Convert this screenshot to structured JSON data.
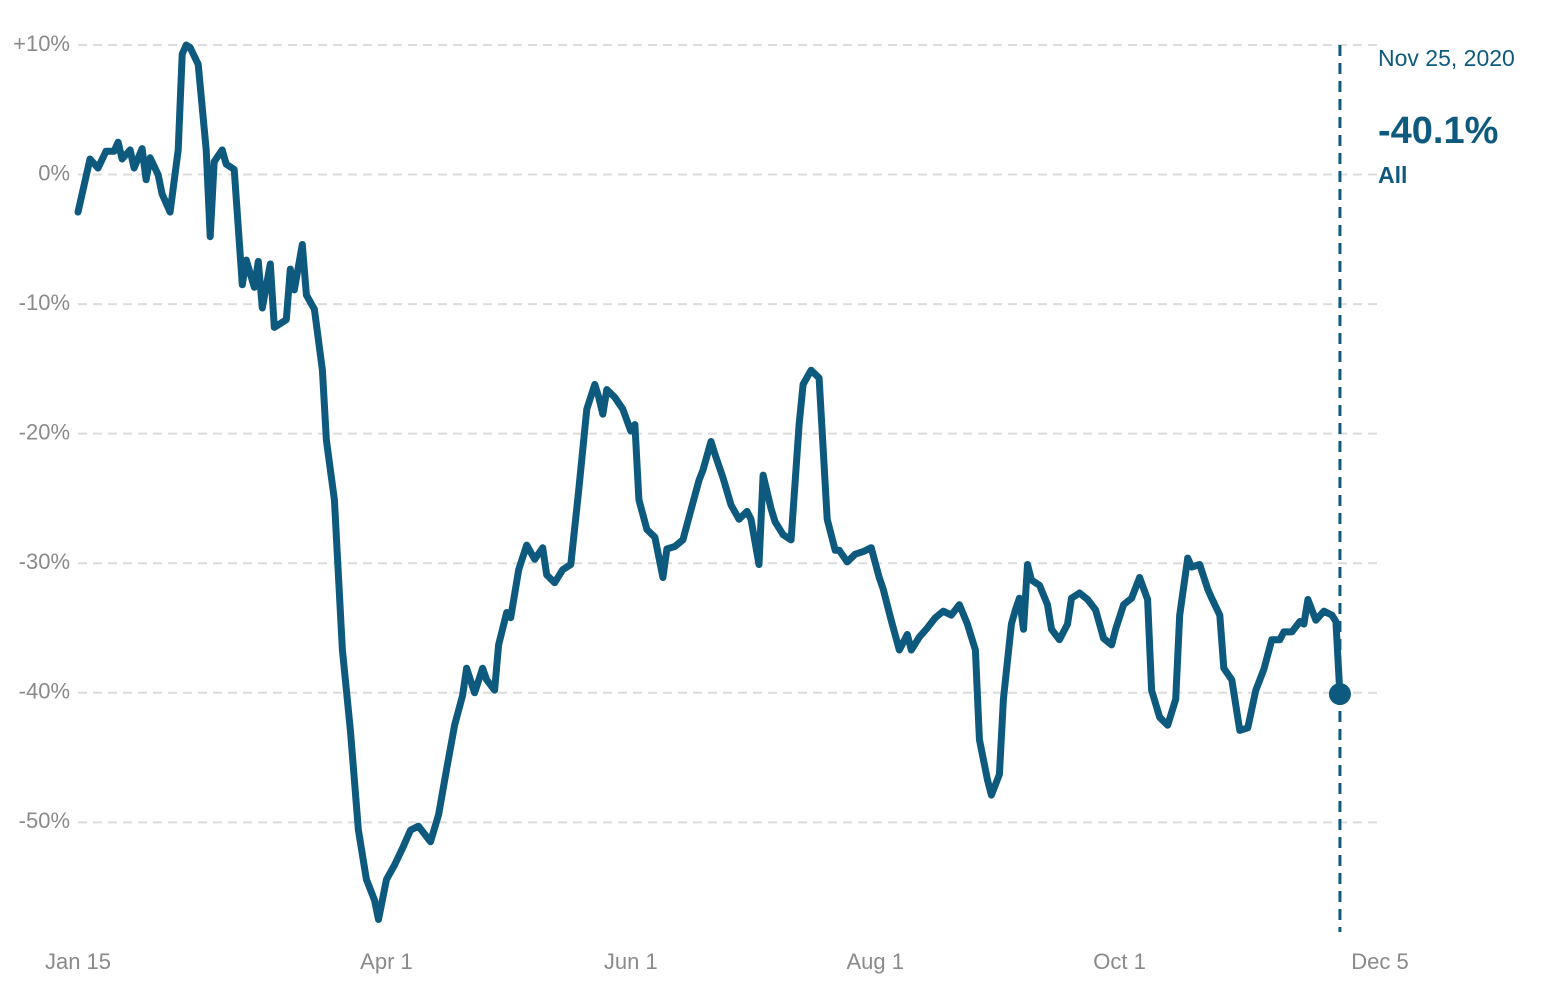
{
  "chart_data": {
    "type": "line",
    "x": [
      "2020-01-15",
      "2020-01-18",
      "2020-01-20",
      "2020-01-22",
      "2020-01-24",
      "2020-01-25",
      "2020-01-26",
      "2020-01-28",
      "2020-01-29",
      "2020-01-31",
      "2020-02-01",
      "2020-02-02",
      "2020-02-04",
      "2020-02-05",
      "2020-02-07",
      "2020-02-09",
      "2020-02-10",
      "2020-02-11",
      "2020-02-12",
      "2020-02-14",
      "2020-02-16",
      "2020-02-17",
      "2020-02-18",
      "2020-02-20",
      "2020-02-21",
      "2020-02-23",
      "2020-02-25",
      "2020-02-26",
      "2020-02-28",
      "2020-02-29",
      "2020-03-01",
      "2020-03-03",
      "2020-03-04",
      "2020-03-07",
      "2020-03-08",
      "2020-03-09",
      "2020-03-11",
      "2020-03-12",
      "2020-03-14",
      "2020-03-16",
      "2020-03-17",
      "2020-03-19",
      "2020-03-21",
      "2020-03-23",
      "2020-03-25",
      "2020-03-27",
      "2020-03-29",
      "2020-03-30",
      "2020-04-01",
      "2020-04-03",
      "2020-04-05",
      "2020-04-07",
      "2020-04-09",
      "2020-04-10",
      "2020-04-12",
      "2020-04-14",
      "2020-04-16",
      "2020-04-18",
      "2020-04-20",
      "2020-04-21",
      "2020-04-23",
      "2020-04-25",
      "2020-04-26",
      "2020-04-28",
      "2020-04-29",
      "2020-05-01",
      "2020-05-02",
      "2020-05-04",
      "2020-05-06",
      "2020-05-08",
      "2020-05-10",
      "2020-05-11",
      "2020-05-13",
      "2020-05-15",
      "2020-05-17",
      "2020-05-19",
      "2020-05-21",
      "2020-05-23",
      "2020-05-24",
      "2020-05-25",
      "2020-05-26",
      "2020-05-28",
      "2020-05-30",
      "2020-06-01",
      "2020-06-02",
      "2020-06-03",
      "2020-06-05",
      "2020-06-07",
      "2020-06-09",
      "2020-06-10",
      "2020-06-12",
      "2020-06-14",
      "2020-06-16",
      "2020-06-18",
      "2020-06-19",
      "2020-06-21",
      "2020-06-22",
      "2020-06-24",
      "2020-06-26",
      "2020-06-28",
      "2020-06-30",
      "2020-07-01",
      "2020-07-03",
      "2020-07-04",
      "2020-07-06",
      "2020-07-07",
      "2020-07-09",
      "2020-07-11",
      "2020-07-13",
      "2020-07-14",
      "2020-07-16",
      "2020-07-18",
      "2020-07-20",
      "2020-07-22",
      "2020-07-23",
      "2020-07-25",
      "2020-07-27",
      "2020-07-29",
      "2020-07-31",
      "2020-08-02",
      "2020-08-03",
      "2020-08-05",
      "2020-08-07",
      "2020-08-09",
      "2020-08-10",
      "2020-08-12",
      "2020-08-14",
      "2020-08-16",
      "2020-08-18",
      "2020-08-20",
      "2020-08-22",
      "2020-08-24",
      "2020-08-26",
      "2020-08-27",
      "2020-08-29",
      "2020-08-30",
      "2020-09-01",
      "2020-09-02",
      "2020-09-04",
      "2020-09-05",
      "2020-09-06",
      "2020-09-07",
      "2020-09-08",
      "2020-09-09",
      "2020-09-11",
      "2020-09-13",
      "2020-09-14",
      "2020-09-16",
      "2020-09-18",
      "2020-09-19",
      "2020-09-21",
      "2020-09-23",
      "2020-09-25",
      "2020-09-27",
      "2020-09-29",
      "2020-09-30",
      "2020-10-02",
      "2020-10-04",
      "2020-10-06",
      "2020-10-08",
      "2020-10-09",
      "2020-10-11",
      "2020-10-13",
      "2020-10-15",
      "2020-10-16",
      "2020-10-18",
      "2020-10-19",
      "2020-10-21",
      "2020-10-23",
      "2020-10-24",
      "2020-10-26",
      "2020-10-27",
      "2020-10-29",
      "2020-10-31",
      "2020-11-02",
      "2020-11-04",
      "2020-11-06",
      "2020-11-08",
      "2020-11-10",
      "2020-11-11",
      "2020-11-13",
      "2020-11-15",
      "2020-11-16",
      "2020-11-17",
      "2020-11-19",
      "2020-11-21",
      "2020-11-23",
      "2020-11-24",
      "2020-11-25"
    ],
    "series": [
      {
        "name": "All",
        "color": "#0e5a7e",
        "values": [
          -2.9,
          1.2,
          0.5,
          1.8,
          1.8,
          2.5,
          1.2,
          1.9,
          0.5,
          2,
          -0.4,
          1.3,
          0,
          -1.5,
          -2.9,
          1.9,
          9.3,
          10,
          9.8,
          8.5,
          1.9,
          -4.8,
          1,
          1.9,
          0.8,
          0.4,
          -8.5,
          -6.6,
          -8.7,
          -6.7,
          -10.3,
          -6.9,
          -11.8,
          -11.2,
          -7.3,
          -8.9,
          -5.4,
          -9.3,
          -10.4,
          -15.1,
          -20.5,
          -25.1,
          -36.7,
          -42.9,
          -50.6,
          -54.4,
          -56,
          -57.5,
          -54.4,
          -53.3,
          -52,
          -50.6,
          -50.3,
          -50.7,
          -51.5,
          -49.4,
          -45.9,
          -42.5,
          -40.2,
          -38.1,
          -40,
          -38.1,
          -39,
          -39.8,
          -36.3,
          -33.8,
          -34.2,
          -30.5,
          -28.6,
          -29.7,
          -28.8,
          -30.9,
          -31.5,
          -30.5,
          -30.1,
          -24.3,
          -18.1,
          -16.2,
          -17.2,
          -18.5,
          -16.6,
          -17.2,
          -18.1,
          -19.8,
          -19.3,
          -25.1,
          -27.4,
          -28,
          -31.1,
          -28.9,
          -28.7,
          -28.2,
          -25.9,
          -23.6,
          -22.8,
          -20.6,
          -21.6,
          -23.4,
          -25.5,
          -26.6,
          -26,
          -26.6,
          -30.1,
          -23.2,
          -25.8,
          -26.8,
          -27.8,
          -28.2,
          -19.3,
          -16.2,
          -15.1,
          -15.7,
          -26.6,
          -29,
          -29,
          -29.9,
          -29.3,
          -29.1,
          -28.8,
          -31.1,
          -32,
          -34.4,
          -36.7,
          -35.5,
          -36.7,
          -35.7,
          -35,
          -34.2,
          -33.7,
          -34,
          -33.2,
          -34.7,
          -36.7,
          -43.6,
          -46.7,
          -47.9,
          -46.3,
          -40.5,
          -34.7,
          -33.6,
          -32.7,
          -35.1,
          -30.1,
          -31.3,
          -31.7,
          -33.2,
          -35.1,
          -35.9,
          -34.7,
          -32.7,
          -32.3,
          -32.8,
          -33.6,
          -35.8,
          -36.3,
          -35.1,
          -33.2,
          -32.7,
          -31.1,
          -32.8,
          -39.8,
          -41.9,
          -42.5,
          -40.5,
          -34,
          -29.6,
          -30.3,
          -30.1,
          -32,
          -32.7,
          -34,
          -38.1,
          -39,
          -42.9,
          -42.7,
          -39.8,
          -38.2,
          -35.9,
          -35.9,
          -35.3,
          -35.3,
          -34.5,
          -34.7,
          -32.8,
          -34.4,
          -33.7,
          -34,
          -34.5,
          -40.1
        ]
      }
    ],
    "xlim": [
      "2020-01-15",
      "2020-12-05"
    ],
    "xticks": [
      {
        "value": "2020-01-15",
        "label": "Jan 15"
      },
      {
        "value": "2020-04-01",
        "label": "Apr 1"
      },
      {
        "value": "2020-06-01",
        "label": "Jun 1"
      },
      {
        "value": "2020-08-01",
        "label": "Aug 1"
      },
      {
        "value": "2020-10-01",
        "label": "Oct 1"
      },
      {
        "value": "2020-12-05",
        "label": "Dec 5"
      }
    ],
    "ylim": [
      -58,
      10
    ],
    "yticks": [
      {
        "value": 10,
        "label": "+10%"
      },
      {
        "value": 0,
        "label": "0%"
      },
      {
        "value": -10,
        "label": "-10%"
      },
      {
        "value": -20,
        "label": "-20%"
      },
      {
        "value": -30,
        "label": "-30%"
      },
      {
        "value": -40,
        "label": "-40%"
      },
      {
        "value": -50,
        "label": "-50%"
      }
    ],
    "grid": true,
    "annotation": {
      "x": "2020-11-25",
      "label": "Nov 25, 2020",
      "value": -40.1,
      "value_label": "-40.1%"
    }
  }
}
